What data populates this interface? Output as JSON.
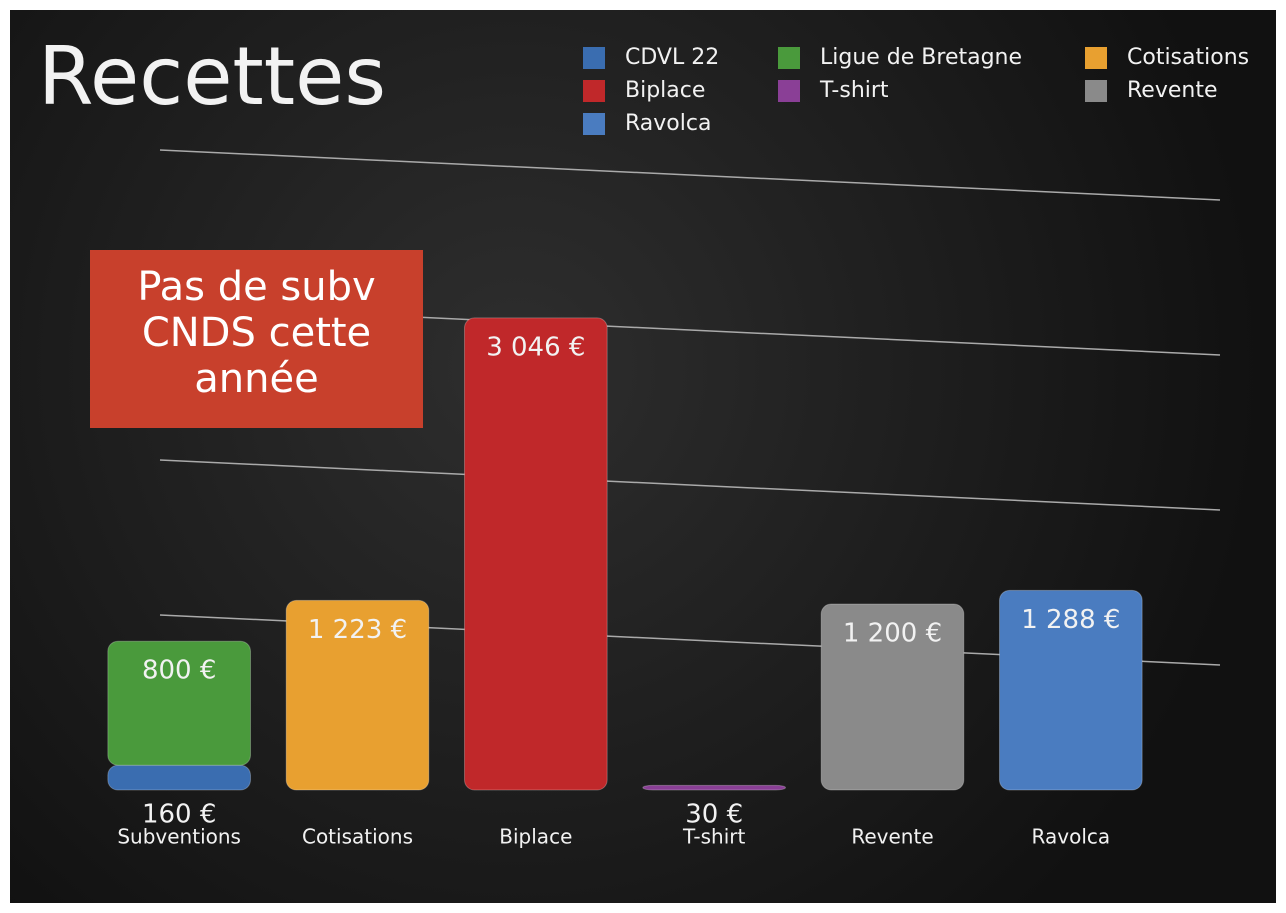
{
  "chart_data": {
    "type": "bar",
    "stacked": true,
    "title": "Recettes",
    "annotation": "Pas de subv CNDS cette année",
    "categories": [
      "Subventions",
      "Cotisations",
      "Biplace",
      "T-shirt",
      "Revente",
      "Ravolca"
    ],
    "series": [
      {
        "name": "CDVL 22",
        "color": "#3a6db0",
        "values": [
          160,
          null,
          null,
          null,
          null,
          null
        ],
        "value_labels": [
          "160 €",
          null,
          null,
          null,
          null,
          null
        ]
      },
      {
        "name": "Ligue de Bretagne",
        "color": "#4a9a3c",
        "values": [
          800,
          null,
          null,
          null,
          null,
          null
        ],
        "value_labels": [
          "800 €",
          null,
          null,
          null,
          null,
          null
        ]
      },
      {
        "name": "Cotisations",
        "color": "#e8a030",
        "values": [
          null,
          1223,
          null,
          null,
          null,
          null
        ],
        "value_labels": [
          null,
          "1 223 €",
          null,
          null,
          null,
          null
        ]
      },
      {
        "name": "Biplace",
        "color": "#c0282a",
        "values": [
          null,
          null,
          3046,
          null,
          null,
          null
        ],
        "value_labels": [
          null,
          null,
          "3 046 €",
          null,
          null,
          null
        ]
      },
      {
        "name": "T-shirt",
        "color": "#8a3f96",
        "values": [
          null,
          null,
          null,
          30,
          null,
          null
        ],
        "value_labels": [
          null,
          null,
          null,
          "30 €",
          null,
          null
        ]
      },
      {
        "name": "Revente",
        "color": "#8a8a8a",
        "values": [
          null,
          null,
          null,
          null,
          1200,
          null
        ],
        "value_labels": [
          null,
          null,
          null,
          null,
          "1 200 €",
          null
        ]
      },
      {
        "name": "Ravolca",
        "color": "#4a7cc0",
        "values": [
          null,
          null,
          null,
          null,
          null,
          1288
        ],
        "value_labels": [
          null,
          null,
          null,
          null,
          null,
          "1 288 €"
        ]
      }
    ],
    "ylim": [
      0,
      4000
    ],
    "yticks": [
      1000,
      2000,
      3000,
      4000
    ],
    "grid": true,
    "legend": "top-right"
  }
}
